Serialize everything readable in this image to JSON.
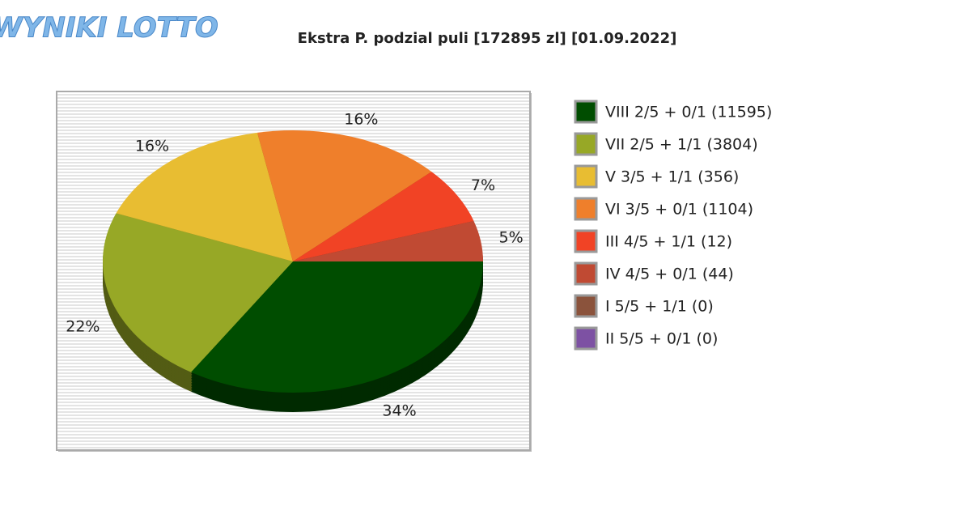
{
  "logo": "WYNIKI LOTTO",
  "chart_data": {
    "type": "pie",
    "title": "Ekstra P. podzial puli [172895 zl] [01.09.2022]",
    "categories": [
      "VIII 2/5 + 0/1 (11595)",
      "VII 2/5 + 1/1 (3804)",
      "V 3/5 + 1/1 (356)",
      "VI 3/5 + 0/1 (1104)",
      "III 4/5 + 1/1 (12)",
      "IV 4/5 + 0/1 (44)",
      "I 5/5 + 1/1 (0)",
      "II 5/5 + 0/1 (0)"
    ],
    "values": [
      34,
      22,
      16,
      16,
      7,
      5,
      0,
      0
    ],
    "value_labels": [
      "34%",
      "22%",
      "16%",
      "16%",
      "7%",
      "5%",
      null,
      null
    ],
    "colors": [
      "#004d00",
      "#97a826",
      "#e8bd32",
      "#ef7f2b",
      "#f14325",
      "#c04a33",
      "#8b533c",
      "#7d51a3"
    ],
    "legend": "right"
  }
}
